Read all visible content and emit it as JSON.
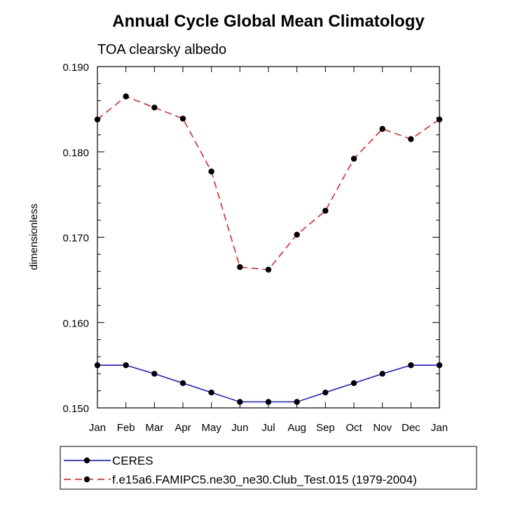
{
  "chart_data": {
    "type": "line",
    "title": "Annual Cycle Global Mean Climatology",
    "subtitle": "TOA clearsky albedo",
    "ylabel": "dimensionless",
    "xlabel": "",
    "categories": [
      "Jan",
      "Feb",
      "Mar",
      "Apr",
      "May",
      "Jun",
      "Jul",
      "Aug",
      "Sep",
      "Oct",
      "Nov",
      "Dec",
      "Jan"
    ],
    "ylim": [
      0.15,
      0.19
    ],
    "yticks": [
      "0.150",
      "0.160",
      "0.170",
      "0.180",
      "0.190"
    ],
    "grid": false,
    "legend_position": "bottom",
    "series": [
      {
        "name": "CERES",
        "color": "#0000ff",
        "dash": "solid",
        "values": [
          0.155,
          0.155,
          0.154,
          0.1529,
          0.1518,
          0.1507,
          0.1507,
          0.1507,
          0.1518,
          0.1529,
          0.154,
          0.155,
          0.155
        ]
      },
      {
        "name": "f.e15a6.FAMIPC5.ne30_ne30.Club_Test.015 (1979-2004)",
        "color": "#ff0000",
        "dash": "dashed",
        "values": [
          0.1838,
          0.1865,
          0.1852,
          0.1839,
          0.1777,
          0.1665,
          0.1662,
          0.1703,
          0.1731,
          0.1792,
          0.1827,
          0.1815,
          0.1838
        ]
      }
    ]
  }
}
